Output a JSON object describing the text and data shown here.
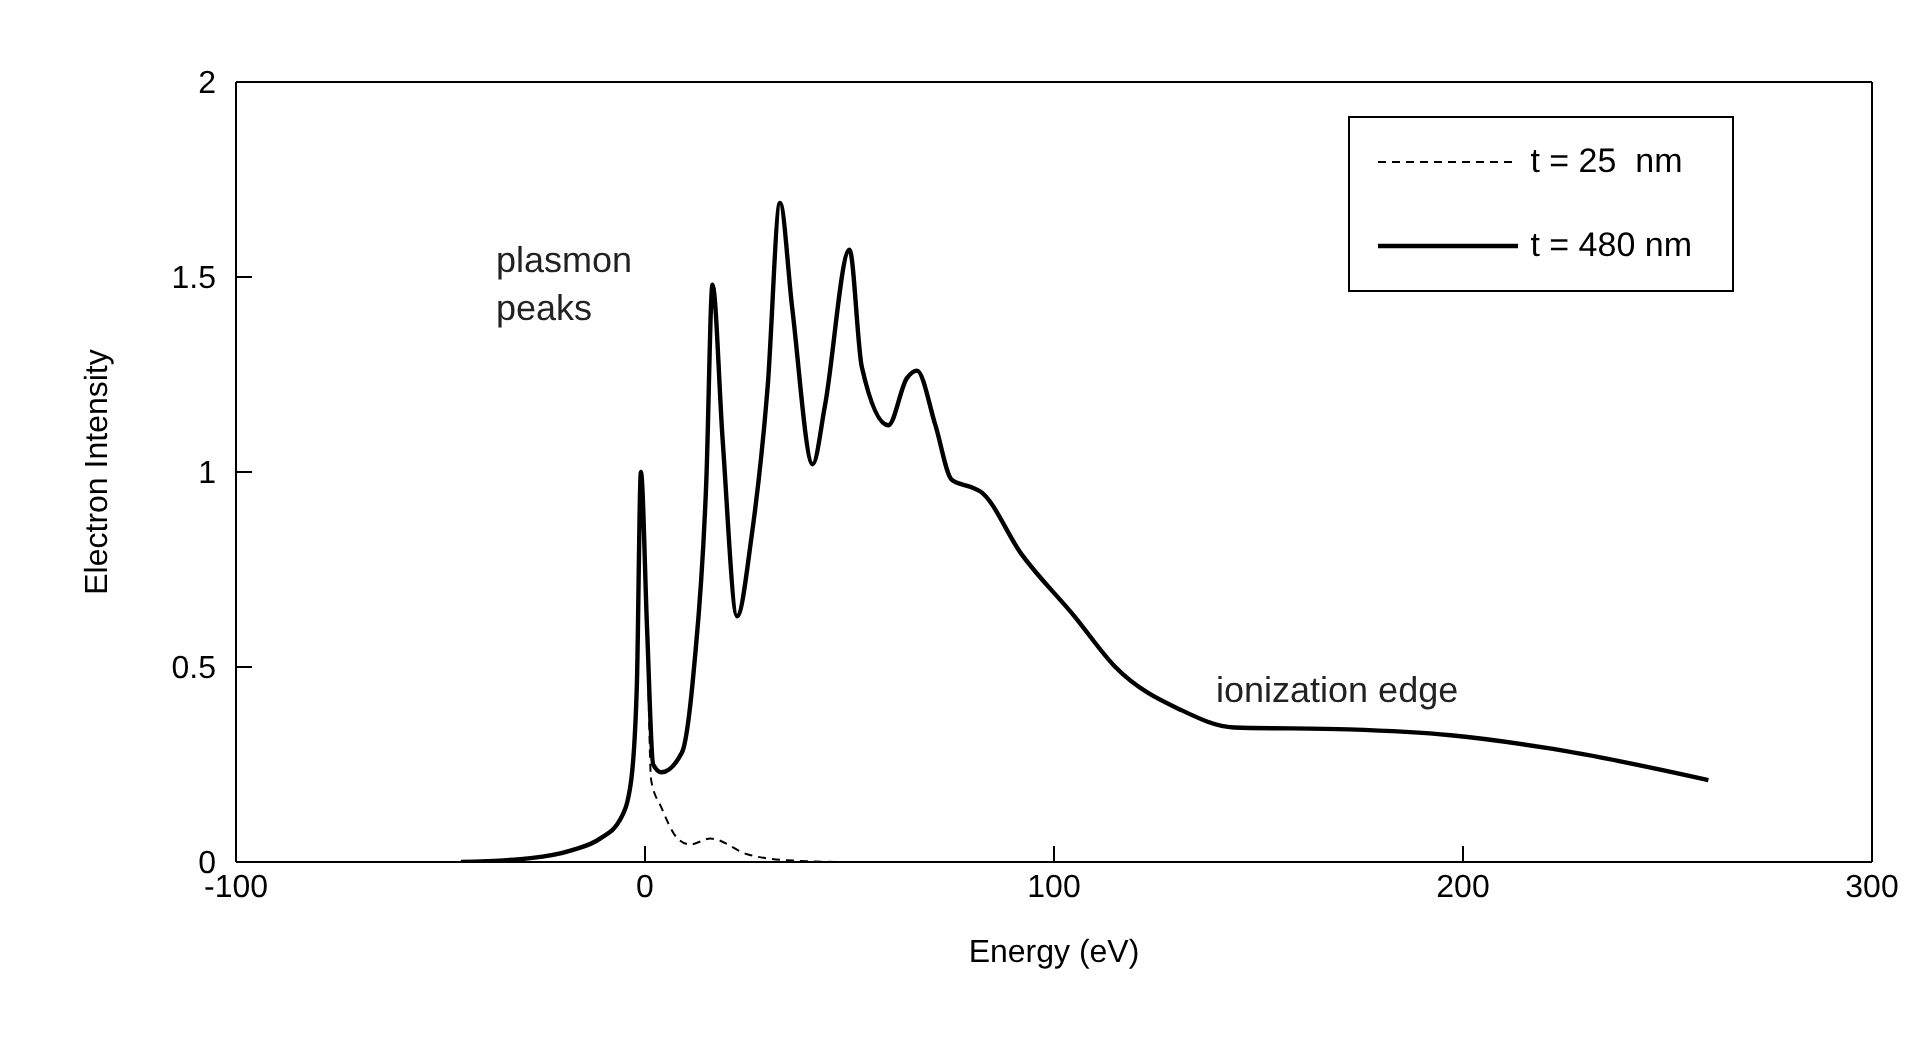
{
  "chart_data": {
    "type": "line",
    "xlabel": "Energy (eV)",
    "ylabel": "Electron Intensity",
    "xlim": [
      -100,
      300
    ],
    "xticks": [
      -100,
      0,
      100,
      200,
      300
    ],
    "ylim": [
      0,
      2
    ],
    "yticks": [
      0,
      0.5,
      1,
      1.5,
      2
    ],
    "grid": false,
    "legend": "top right",
    "marker": "none",
    "annotations": [
      "plasmon peaks",
      "ionization edge"
    ],
    "series": [
      {
        "name": "t = 25  nm",
        "color": "#000000",
        "line_style": "dashed",
        "x": [
          -45,
          -28,
          -18,
          -11,
          -6,
          -3.5,
          -2,
          -1,
          0.5,
          1.5,
          4,
          8,
          11,
          16,
          25,
          34,
          50,
          80
        ],
        "values": [
          0,
          0.01,
          0.03,
          0.06,
          0.11,
          0.2,
          0.45,
          1.0,
          0.6,
          0.21,
          0.14,
          0.06,
          0.045,
          0.06,
          0.02,
          0.005,
          0,
          0
        ]
      },
      {
        "name": "t = 480 nm",
        "color": "#000000",
        "line_style": "solid",
        "x": [
          -45,
          -28,
          -18,
          -11,
          -6,
          -3.5,
          -2,
          -1,
          0.5,
          2,
          4,
          9,
          12,
          15,
          16.5,
          19,
          22.5,
          26,
          30,
          33,
          36,
          41,
          44,
          50,
          53,
          59.5,
          64,
          66.5,
          71,
          75,
          80,
          82,
          92,
          105,
          115,
          131,
          144,
          172,
          197,
          222,
          260
        ],
        "values": [
          0,
          0.01,
          0.03,
          0.06,
          0.11,
          0.2,
          0.45,
          1.0,
          0.6,
          0.25,
          0.23,
          0.28,
          0.5,
          0.98,
          1.48,
          1.08,
          0.63,
          0.83,
          1.22,
          1.69,
          1.42,
          1.02,
          1.17,
          1.57,
          1.27,
          1.12,
          1.24,
          1.26,
          1.12,
          0.98,
          0.96,
          0.95,
          0.79,
          0.63,
          0.5,
          0.39,
          0.345,
          0.34,
          0.325,
          0.29,
          0.21
        ]
      }
    ]
  }
}
